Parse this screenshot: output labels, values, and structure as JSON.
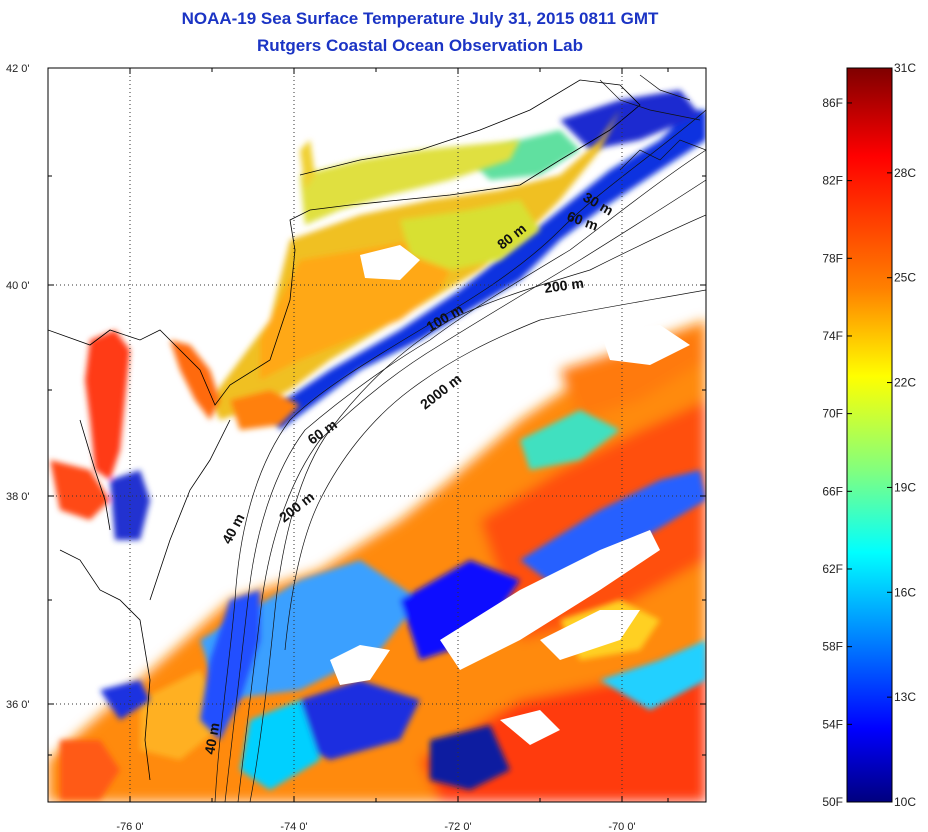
{
  "header": {
    "title": "NOAA-19 Sea Surface Temperature July 31, 2015 0811 GMT",
    "subtitle": "Rutgers Coastal Ocean Observation Lab"
  },
  "map": {
    "lon_range": [
      -77.0,
      -69.0
    ],
    "lat_range": [
      35.0,
      42.0
    ],
    "lon_ticks": [
      {
        "value": -76,
        "label": "-76 0'"
      },
      {
        "value": -74,
        "label": "-74 0'"
      },
      {
        "value": -72,
        "label": "-72 0'"
      },
      {
        "value": -70,
        "label": "-70 0'"
      }
    ],
    "lat_ticks": [
      {
        "value": 42,
        "label": "42 0'"
      },
      {
        "value": 40,
        "label": "40 0'"
      },
      {
        "value": 38,
        "label": "38 0'"
      },
      {
        "value": 36,
        "label": "36 0'"
      }
    ],
    "grid": "dotted",
    "contour_labels": [
      "30 m",
      "60 m",
      "80 m",
      "200 m",
      "100 m",
      "2000 m",
      "60 m",
      "200 m",
      "40 m",
      "40 m"
    ]
  },
  "colorbar": {
    "celsius_ticks": [
      {
        "value": 31,
        "label": "31C"
      },
      {
        "value": 28,
        "label": "28C"
      },
      {
        "value": 25,
        "label": "25C"
      },
      {
        "value": 22,
        "label": "22C"
      },
      {
        "value": 19,
        "label": "19C"
      },
      {
        "value": 16,
        "label": "16C"
      },
      {
        "value": 13,
        "label": "13C"
      },
      {
        "value": 10,
        "label": "10C"
      }
    ],
    "fahrenheit_ticks": [
      {
        "value": 86,
        "label": "86F"
      },
      {
        "value": 82,
        "label": "82F"
      },
      {
        "value": 78,
        "label": "78F"
      },
      {
        "value": 74,
        "label": "74F"
      },
      {
        "value": 70,
        "label": "70F"
      },
      {
        "value": 66,
        "label": "66F"
      },
      {
        "value": 62,
        "label": "62F"
      },
      {
        "value": 58,
        "label": "58F"
      },
      {
        "value": 54,
        "label": "54F"
      },
      {
        "value": 50,
        "label": "50F"
      }
    ],
    "range_c": [
      10,
      31
    ],
    "colors": [
      "#7f0000",
      "#ff0000",
      "#ff8000",
      "#ffff00",
      "#80ff80",
      "#00ffff",
      "#0080ff",
      "#0000ff",
      "#00007f"
    ]
  }
}
